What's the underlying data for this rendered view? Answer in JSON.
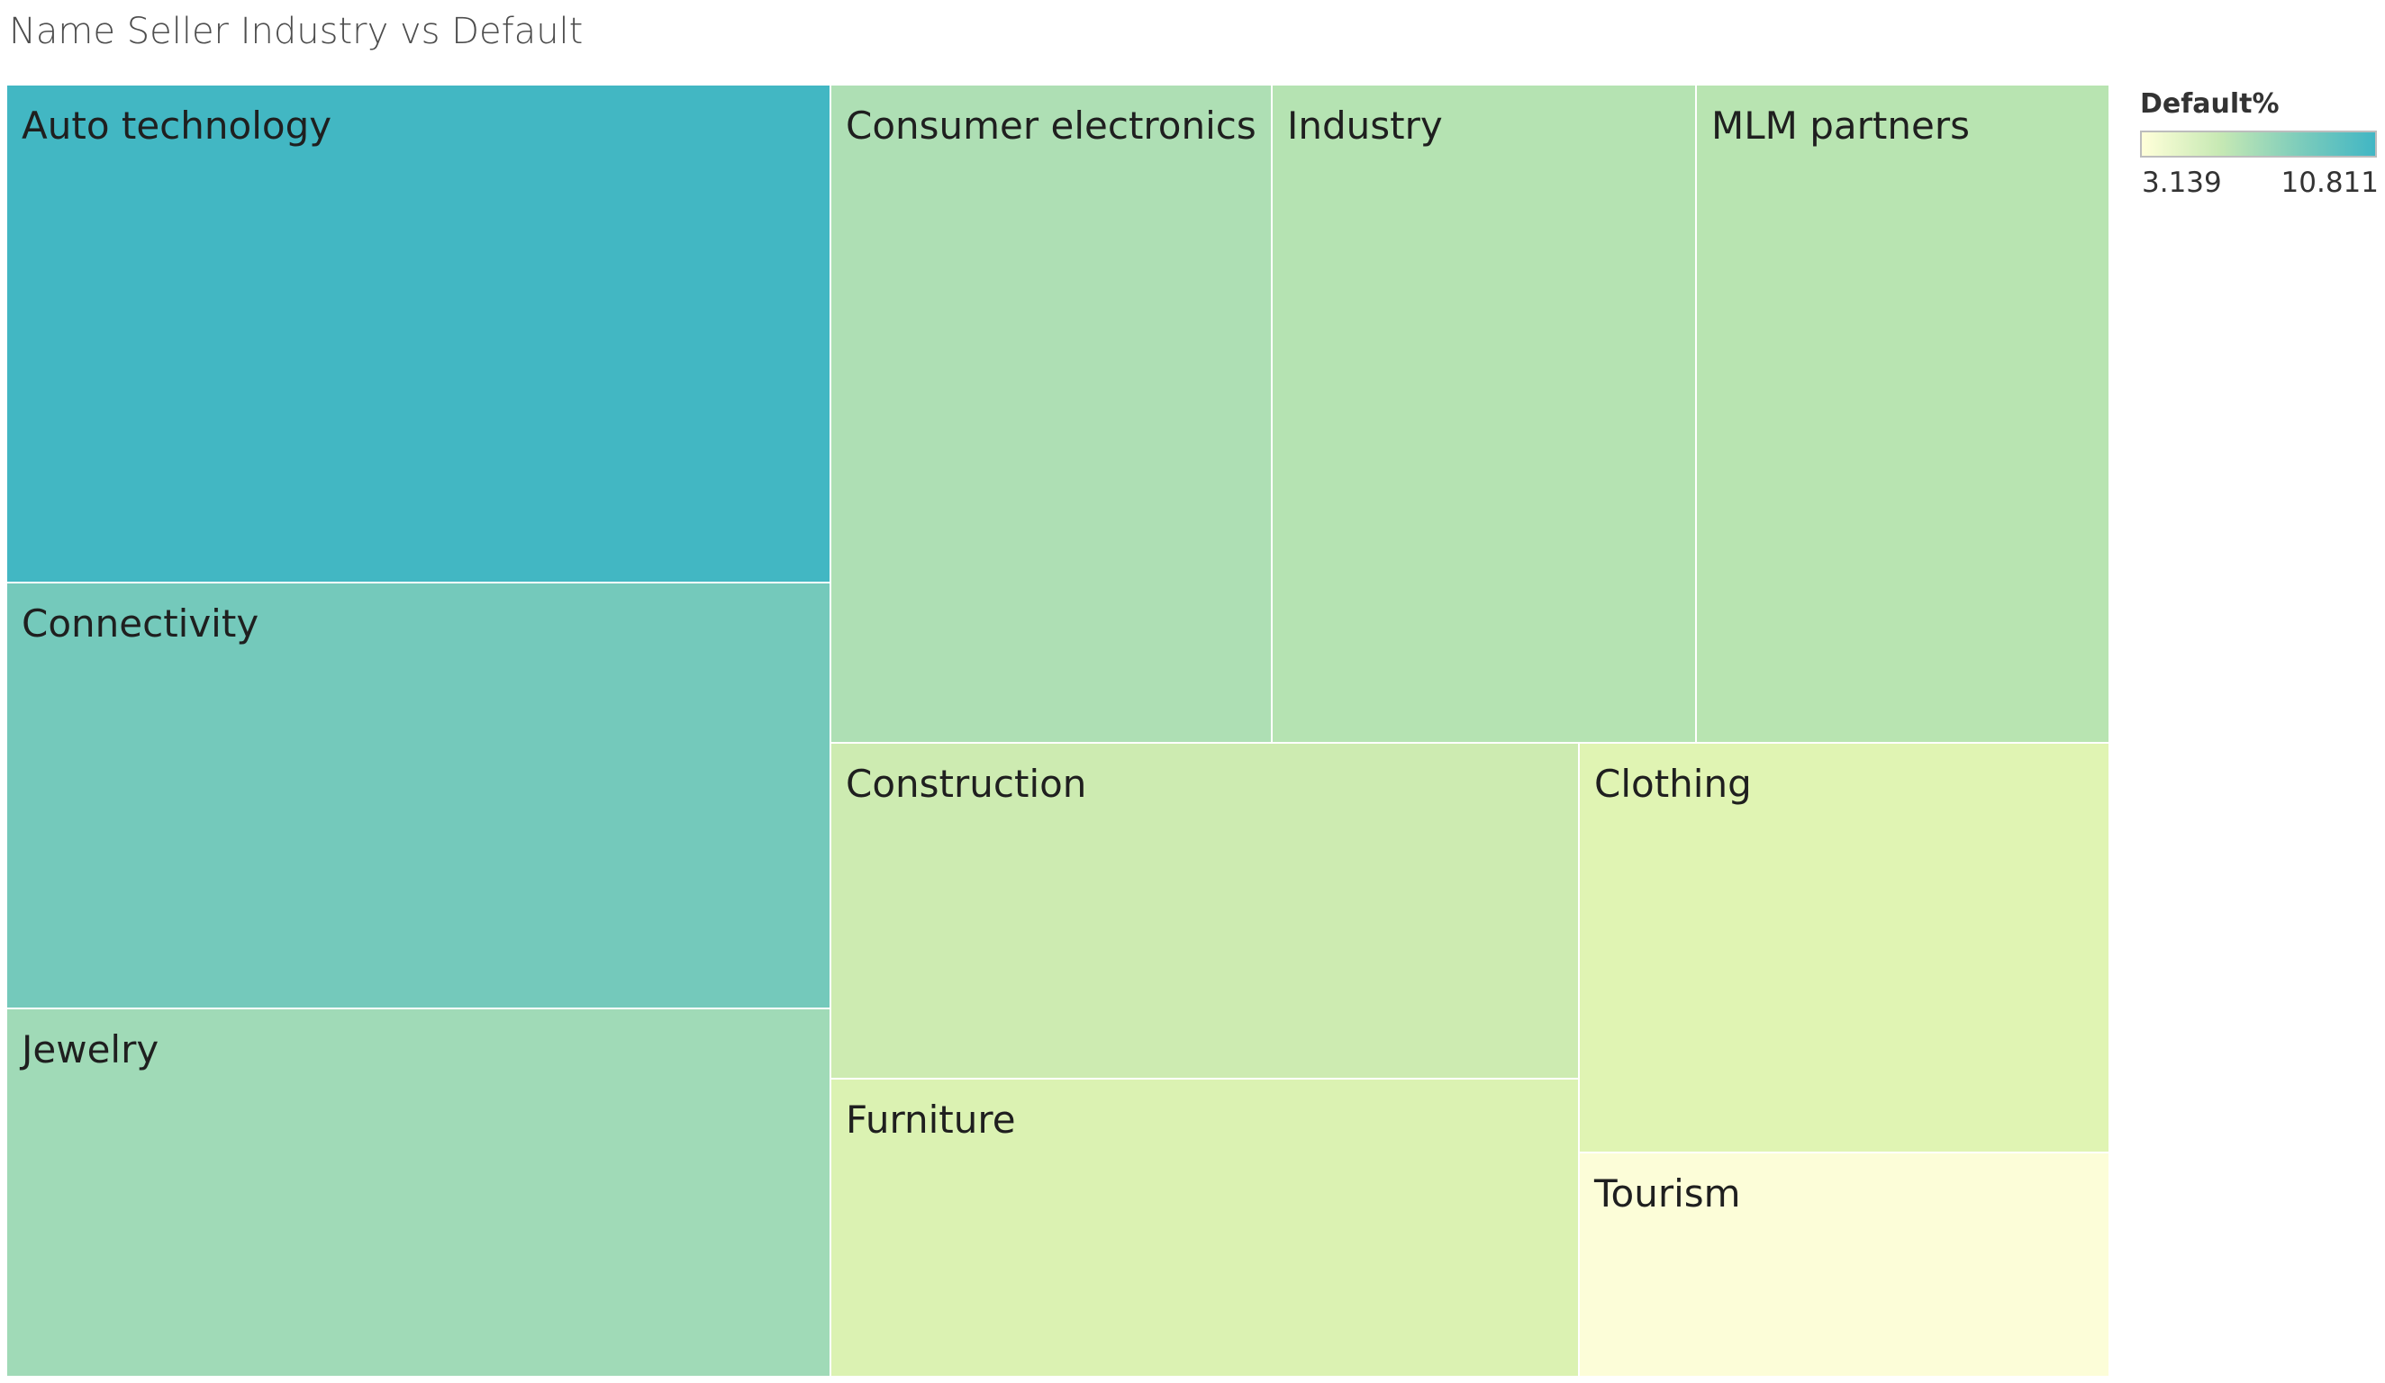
{
  "chart_data": {
    "type": "treemap",
    "title": "Name Seller Industry vs Default",
    "color_measure": "Default%",
    "color_range": [
      3.139,
      10.811
    ],
    "color_scale": [
      "#ffffd9",
      "#c7e9b4",
      "#7fcdbb",
      "#41b6c4"
    ],
    "nodes": [
      {
        "name": "Auto technology",
        "default_pct": 10.811,
        "color": "#42b7c3"
      },
      {
        "name": "Connectivity",
        "default_pct": 8.6,
        "color": "#74c9bb"
      },
      {
        "name": "Jewelry",
        "default_pct": 7.1,
        "color": "#a0dab7"
      },
      {
        "name": "Consumer electronics",
        "default_pct": 6.8,
        "color": "#aedfb4"
      },
      {
        "name": "Industry",
        "default_pct": 6.6,
        "color": "#b5e3b2"
      },
      {
        "name": "MLM partners",
        "default_pct": 6.5,
        "color": "#b8e4b1"
      },
      {
        "name": "Construction",
        "default_pct": 5.6,
        "color": "#cdebb1"
      },
      {
        "name": "Furniture",
        "default_pct": 4.8,
        "color": "#dbf2b2"
      },
      {
        "name": "Clothing",
        "default_pct": 4.6,
        "color": "#e0f4b3"
      },
      {
        "name": "Tourism",
        "default_pct": 3.139,
        "color": "#fcfdd8"
      }
    ]
  },
  "legend": {
    "title": "Default%",
    "min_label": "3.139",
    "max_label": "10.811"
  }
}
